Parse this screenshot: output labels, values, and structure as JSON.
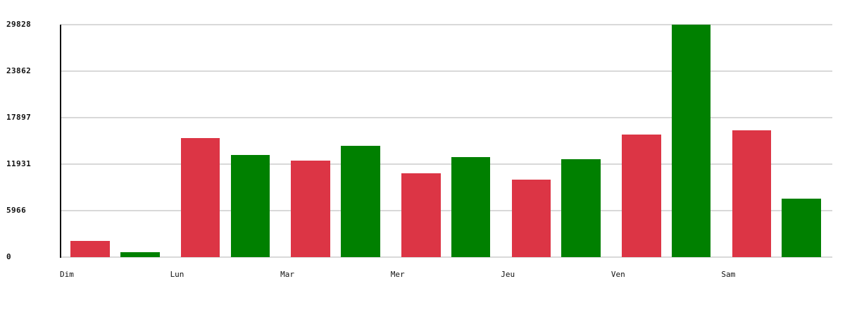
{
  "chart_data": {
    "type": "bar",
    "title": "",
    "xlabel": "",
    "ylabel": "",
    "categories": [
      "Dim",
      "Lun",
      "Mar",
      "Mer",
      "Jeu",
      "Ven",
      "Sam"
    ],
    "series": [
      {
        "name": "red-series",
        "color": "#dc3545",
        "values": [
          2100,
          15300,
          12400,
          10800,
          9900,
          15700,
          16300
        ]
      },
      {
        "name": "green-series",
        "color": "#008000",
        "values": [
          600,
          13100,
          14300,
          12800,
          12600,
          29828,
          7500
        ]
      }
    ],
    "ylim": [
      0,
      29828
    ],
    "yticks": [
      0,
      5966,
      11931,
      17897,
      23862,
      29828
    ],
    "grid": true,
    "legend": "none",
    "axis_color": "#111111",
    "gridline_color": "#d9d9d9",
    "background_color": "#ffffff"
  }
}
